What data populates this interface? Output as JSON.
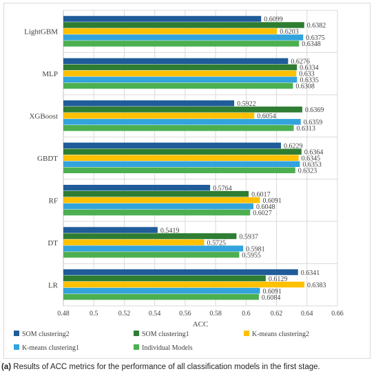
{
  "chart_data": {
    "type": "bar",
    "orientation": "horizontal",
    "categories": [
      "LightGBM",
      "MLP",
      "XGBoost",
      "GBDT",
      "RF",
      "DT",
      "LR"
    ],
    "series": [
      {
        "name": "SOM clustering2",
        "color": "#1f5c99",
        "values": [
          0.6099,
          0.6276,
          0.5922,
          0.6229,
          0.5764,
          0.5419,
          0.6341
        ],
        "labels": [
          "0.6099",
          "0.6276",
          "0.5922",
          "0.6229",
          "0.5764",
          "0.5419",
          "0.6341"
        ]
      },
      {
        "name": "SOM clustering1",
        "color": "#2e7d32",
        "values": [
          0.6382,
          0.6334,
          0.6369,
          0.6364,
          0.6017,
          0.5937,
          0.6129
        ],
        "labels": [
          "0.6382",
          "0.6334",
          "0.6369",
          "0.6364",
          "0.6017",
          "0.5937",
          "0.6129"
        ]
      },
      {
        "name": "K-means clustering2",
        "color": "#ffc000",
        "values": [
          0.6203,
          0.633,
          0.6054,
          0.6345,
          0.6091,
          0.5725,
          0.6383
        ],
        "labels": [
          "0.6203",
          "0.633",
          "0.6054",
          "0.6345",
          "0.6091",
          "0.5725",
          "0.6383"
        ]
      },
      {
        "name": "K-means clustering1",
        "color": "#33a3dc",
        "values": [
          0.6375,
          0.6335,
          0.6359,
          0.6353,
          0.6048,
          0.5981,
          0.6091
        ],
        "labels": [
          "0.6375",
          "0.6335",
          "0.6359",
          "0.6353",
          "0.6048",
          "0.5981",
          "0.6091"
        ]
      },
      {
        "name": "Individual Models",
        "color": "#4caf50",
        "values": [
          0.6348,
          0.6308,
          0.6313,
          0.6323,
          0.6027,
          0.5955,
          0.6084
        ],
        "labels": [
          "0.6348",
          "0.6308",
          "0.6313",
          "0.6323",
          "0.6027",
          "0.5955",
          "0.6084"
        ]
      }
    ],
    "xlabel": "ACC",
    "xlim": [
      0.48,
      0.66
    ],
    "xticks": [
      "0.48",
      "0.5",
      "0.52",
      "0.54",
      "0.56",
      "0.58",
      "0.6",
      "0.62",
      "0.64",
      "0.66"
    ],
    "grid": true,
    "legend": "bottom"
  },
  "caption": {
    "prefix": "(a)",
    "text": "Results of ACC metrics for the performance of all classification models in the first stage."
  }
}
